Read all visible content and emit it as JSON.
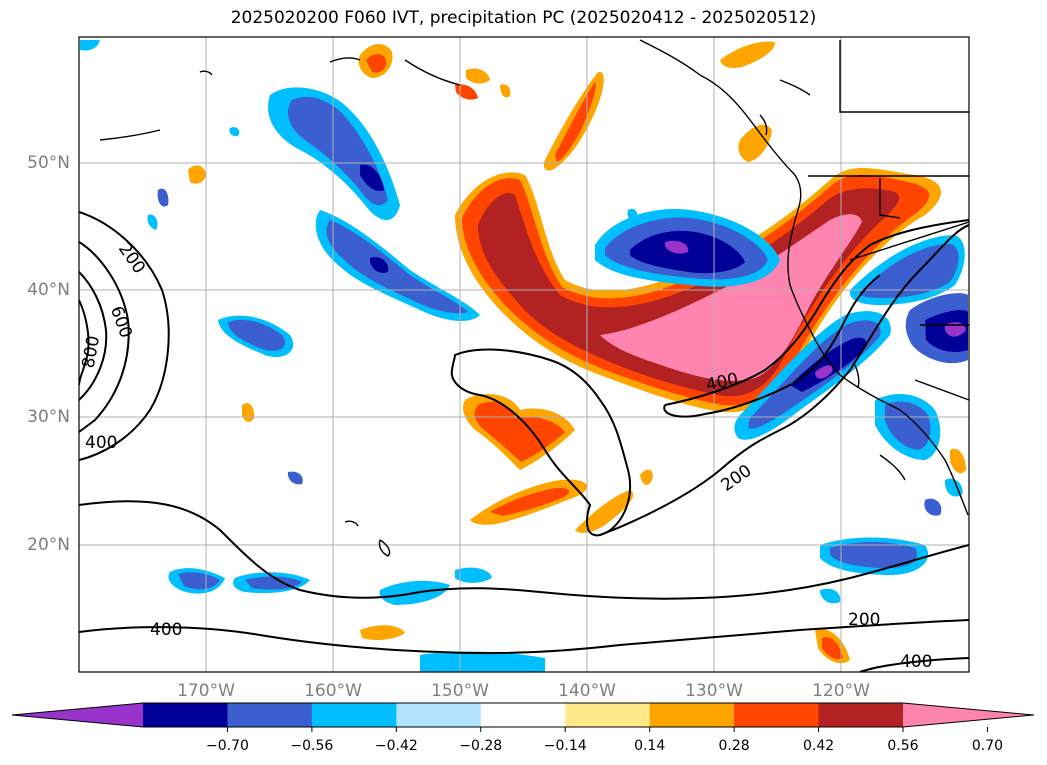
{
  "title": "2025020200 F060 IVT, precipitation PC (2025020412 - 2025020512)",
  "map": {
    "lon_ticks": [
      "170°W",
      "160°W",
      "150°W",
      "140°W",
      "130°W",
      "120°W"
    ],
    "lat_ticks": [
      "50°N",
      "40°N",
      "30°N",
      "20°N"
    ],
    "contour_labels": [
      "200",
      "600",
      "800",
      "400",
      "400",
      "200",
      "200",
      "400",
      "400"
    ],
    "colors": {
      "grid": "#b0b0b0",
      "coast": "#000000",
      "tick_text": "#7f7f7f"
    }
  },
  "colorbar": {
    "ticks": [
      "−0.70",
      "−0.56",
      "−0.42",
      "−0.28",
      "−0.14",
      "0.14",
      "0.28",
      "0.42",
      "0.56",
      "0.70"
    ],
    "colors": [
      "#9933cc",
      "#000099",
      "#3b5fcf",
      "#00bfff",
      "#b0e4ff",
      "#ffffff",
      "#ffe98a",
      "#ffa500",
      "#ff4500",
      "#b22222",
      "#ff85b0"
    ]
  }
}
